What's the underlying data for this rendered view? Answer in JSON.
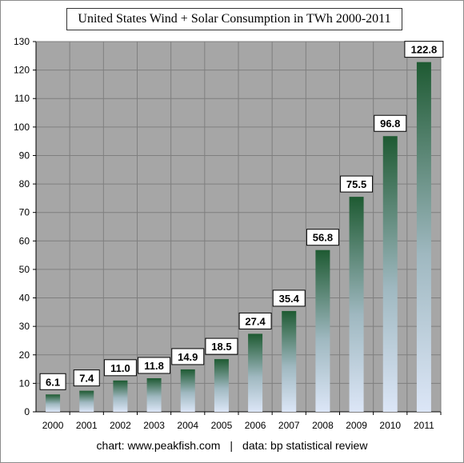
{
  "chart_data": {
    "type": "bar",
    "title": "United States Wind + Solar Consumption in TWh 2000-2011",
    "categories": [
      "2000",
      "2001",
      "2002",
      "2003",
      "2004",
      "2005",
      "2006",
      "2007",
      "2008",
      "2009",
      "2010",
      "2011"
    ],
    "values": [
      6.1,
      7.4,
      11.0,
      11.8,
      14.9,
      18.5,
      27.4,
      35.4,
      56.8,
      75.5,
      96.8,
      122.8
    ],
    "value_labels": [
      "6.1",
      "7.4",
      "11.0",
      "11.8",
      "14.9",
      "18.5",
      "27.4",
      "35.4",
      "56.8",
      "75.5",
      "96.8",
      "122.8"
    ],
    "xlabel": "",
    "ylabel": "",
    "ylim": [
      0,
      130
    ],
    "y_ticks": [
      0,
      10,
      20,
      30,
      40,
      50,
      60,
      70,
      80,
      90,
      100,
      110,
      120,
      130
    ],
    "grid": true,
    "legend": "none",
    "colors": {
      "plot_background": "#a6a6a6",
      "bar_top": "#1e5a32",
      "bar_bottom": "#dce6f7",
      "gridline": "#7f7f7f"
    }
  },
  "footer": {
    "left": "chart:  www.peakfish.com",
    "separator": "|",
    "right": "data: bp statistical review"
  }
}
